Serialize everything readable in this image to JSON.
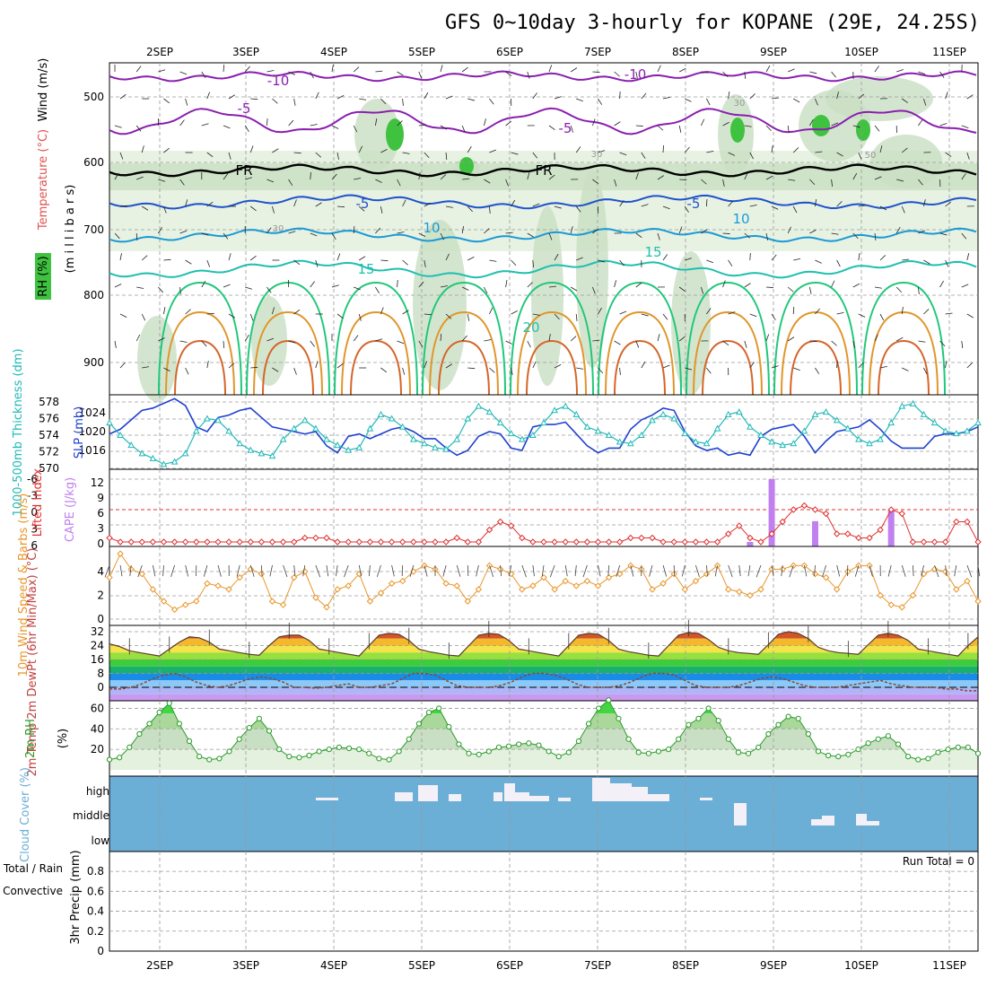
{
  "title": "GFS 0~10day 3-hourly for KOPANE (29E, 24.25S)",
  "colors": {
    "frame": "#000000",
    "grid": "#9a9a9a",
    "rh_shade": "#e4f1df",
    "rh_shade2": "#c9dfc3",
    "rh_dark": "#a9bfa4",
    "rh_green": "#3fc23f",
    "temp_purple": "#8a1fb0",
    "temp_blue": "#1f52cc",
    "temp_lightblue": "#1a9ad6",
    "temp_teal": "#1fbfb0",
    "temp_green": "#1fc77a",
    "temp_orange": "#e0962a",
    "temp_darkorange": "#d4662a",
    "slp_line": "#2040d0",
    "thick_line": "#20b8b8",
    "li_line": "#e03030",
    "cape_bar": "#c080f0",
    "wind_line": "#e8962a",
    "rh2m_line": "#2a9a2a",
    "cloud_bg": "#6baed6",
    "cloud_white": "#f4f0f8",
    "temp_fill_colors": [
      "#9b3c14",
      "#d2552a",
      "#f08a2a",
      "#f4b82a",
      "#f4e34a",
      "#9ae03c",
      "#3ccc3c",
      "#1ab06e",
      "#1a8ce8",
      "#2a64e8",
      "#8cc8f8",
      "#b0b4f8",
      "#c89af0"
    ],
    "dewpt_line": "#8a4a30"
  },
  "chart_data": [
    {
      "panel": "cross_section",
      "type": "contour",
      "y_labels": [
        "500",
        "600",
        "700",
        "800",
        "900"
      ],
      "y_axis_label_temp": "Temperature (°C)",
      "y_axis_label_wind": "Wind (m/s)",
      "y_axis_label_mb": "(m i l l i b a r s)",
      "rh_legend": "RH (%)",
      "contour_labels": [
        "-10",
        "-10",
        "-5",
        "-5",
        "FR",
        "FR",
        "-5",
        "-5",
        "10",
        "10",
        "15",
        "15",
        "20",
        "30",
        "30",
        "30",
        "50"
      ],
      "temperature_isotherms": [
        -10,
        -5,
        0,
        5,
        10,
        15,
        20,
        25,
        30
      ],
      "x_labels": [
        "2SEP",
        "3SEP",
        "4SEP",
        "5SEP",
        "6SEP",
        "7SEP",
        "8SEP",
        "9SEP",
        "10SEP",
        "11SEP"
      ]
    },
    {
      "panel": "slp_thickness",
      "type": "line",
      "y_labels_left": [
        "578",
        "576",
        "574",
        "572",
        "570"
      ],
      "y_labels_right": [
        "1024",
        "1020",
        "1016"
      ],
      "ylabel_thickness": "1000-500mb Thickness (dm)",
      "ylabel_slp": "SLP (mb)",
      "series": [
        {
          "name": "SLP",
          "unit": "mb",
          "values": [
            1019.5,
            1020.5,
            1022.5,
            1024.5,
            1025,
            1026,
            1027,
            1025.5,
            1021,
            1020,
            1023,
            1023.5,
            1024.5,
            1025,
            1023,
            1021,
            1020.5,
            1020,
            1019.5,
            1020,
            1017,
            1015.5,
            1019,
            1019.5,
            1018.5,
            1019.5,
            1020.5,
            1021,
            1020,
            1018.5,
            1018.5,
            1016.5,
            1015,
            1016,
            1019,
            1020,
            1019.5,
            1016.5,
            1016,
            1021,
            1021.5,
            1021.5,
            1022,
            1019.5,
            1017,
            1015.5,
            1016.5,
            1016.5,
            1020.5,
            1022.5,
            1023.5,
            1025,
            1024.5,
            1020,
            1017,
            1016,
            1016.5,
            1015,
            1015.5,
            1015,
            1019,
            1020.5,
            1021,
            1021.5,
            1019,
            1015.5,
            1018,
            1020,
            1020.5,
            1021,
            1022.5,
            1020.5,
            1018,
            1016.5,
            1016.5,
            1016.5,
            1019,
            1019.5,
            1019.5,
            1020,
            1021
          ]
        },
        {
          "name": "Thickness",
          "unit": "dm",
          "values": [
            575.5,
            574,
            572.8,
            571.8,
            571.2,
            570.5,
            570.8,
            571.8,
            574.5,
            576,
            575.8,
            574.5,
            573,
            572.2,
            571.8,
            571.5,
            573.5,
            574.8,
            575.8,
            574.8,
            573.5,
            572.8,
            572.2,
            572.5,
            574.8,
            576.5,
            576,
            575,
            573.5,
            573,
            572.5,
            572.3,
            573.5,
            576,
            577.5,
            576.8,
            575.5,
            574.2,
            573.5,
            574,
            575.5,
            577,
            577.5,
            576.5,
            575,
            574.5,
            574,
            573.2,
            573,
            574,
            575.8,
            576.5,
            576,
            574.2,
            573.2,
            573,
            574.8,
            576.5,
            576.8,
            575,
            574,
            573.2,
            572.8,
            573,
            574.5,
            576.5,
            576.8,
            575.8,
            574.8,
            573.5,
            573,
            573.5,
            575.5,
            577.5,
            577.8,
            576.5,
            575.5,
            574.5,
            574.2,
            574.5,
            575.5
          ]
        }
      ]
    },
    {
      "panel": "lifted_index_cape",
      "type": "bar",
      "y_labels_left": [
        "-6",
        "-3",
        "0",
        "3",
        "6"
      ],
      "y_labels_right": [
        "12",
        "9",
        "6",
        "3",
        "0"
      ],
      "ylabel_li": "Lifted Index",
      "ylabel_cape": "CAPE (J/kg)",
      "lifted_index": [
        5.5,
        6,
        6,
        6,
        6,
        6,
        6,
        6,
        6,
        6,
        6,
        6,
        6,
        6,
        6,
        6,
        6,
        6,
        5.5,
        5.5,
        5.5,
        6,
        6,
        6,
        6,
        6,
        6,
        6,
        6,
        6,
        6,
        6,
        5.5,
        6,
        6,
        4.5,
        3.5,
        4,
        5.5,
        6,
        6,
        6,
        6,
        6,
        6,
        6,
        6,
        6,
        5.5,
        5.5,
        5.5,
        6,
        6,
        6,
        6,
        6,
        6,
        5,
        4,
        5.5,
        6,
        5,
        3.5,
        2,
        1.5,
        2,
        2.5,
        5,
        5,
        5.5,
        5.5,
        4.5,
        2,
        2.5,
        6,
        6,
        6,
        6,
        3.5,
        3.5,
        6
      ],
      "cape": [
        0,
        0,
        0,
        0,
        0,
        0,
        0,
        0,
        0,
        0,
        0,
        0,
        0,
        0,
        0,
        0,
        0,
        0,
        0,
        0,
        0,
        0,
        0,
        0,
        0,
        0,
        0,
        0,
        0,
        0,
        0,
        0,
        0,
        0,
        0,
        0,
        0,
        0,
        0,
        0,
        0,
        0,
        0,
        0,
        0,
        0,
        0,
        0,
        0,
        0,
        0,
        0,
        0,
        0,
        0,
        0,
        0,
        0,
        0,
        0.8,
        0,
        12,
        0,
        0,
        0,
        4.5,
        0,
        0,
        0,
        0,
        0,
        0,
        6.5,
        0,
        0,
        0,
        0,
        0,
        0,
        0,
        0
      ]
    },
    {
      "panel": "wind_10m",
      "type": "line",
      "y_labels": [
        "4",
        "2",
        "0"
      ],
      "ylabel": "10m Wind Speed & Barbs (m/s)",
      "values": [
        3.5,
        5.5,
        4.2,
        3.8,
        2.5,
        1.5,
        0.8,
        1.2,
        1.5,
        3,
        2.8,
        2.5,
        3.5,
        4.2,
        3.8,
        1.5,
        1.2,
        3.5,
        4,
        1.8,
        1,
        2.5,
        2.8,
        3.8,
        1.5,
        2.2,
        3,
        3.2,
        4,
        4.5,
        4.2,
        3,
        2.8,
        1.5,
        2.5,
        4.5,
        4.2,
        3.8,
        2.5,
        2.8,
        3.5,
        2.5,
        3.2,
        2.8,
        3.2,
        2.8,
        3.5,
        3.8,
        4.5,
        4.2,
        2.5,
        3,
        3.8,
        2.5,
        3.2,
        3.8,
        4.5,
        2.5,
        2.3,
        2,
        2.5,
        4.2,
        4.2,
        4.5,
        4.5,
        3.8,
        3.5,
        2.5,
        4,
        4.5,
        4.5,
        2,
        1.2,
        1,
        2,
        3.8,
        4.2,
        4,
        2.5,
        3.2,
        1.5
      ]
    },
    {
      "panel": "temp_2m",
      "type": "area",
      "y_labels": [
        "32",
        "24",
        "16",
        "8",
        "0"
      ],
      "ylabel": "2m Temp 2m DewPt (6hr Min/Max) (°C)",
      "temperature": [
        25,
        23.5,
        21,
        20,
        19,
        18,
        22,
        26,
        29,
        28.5,
        26,
        22,
        21,
        20,
        19,
        18.5,
        24,
        29,
        30,
        30,
        27,
        22,
        21,
        20,
        19,
        18,
        24,
        30,
        31,
        30.5,
        27,
        22,
        20.5,
        19.5,
        18.5,
        18,
        24,
        30,
        31,
        30.5,
        27,
        22,
        21,
        20,
        19,
        18,
        24,
        30,
        31,
        30.5,
        27,
        22,
        20.5,
        19.5,
        18.5,
        18,
        24,
        30,
        31.5,
        31,
        27.5,
        23,
        21,
        20,
        19.5,
        19,
        24.5,
        30.5,
        32,
        31,
        28,
        23,
        21,
        20,
        19.5,
        19,
        24.5,
        30,
        31,
        30,
        27,
        22,
        21,
        20,
        19,
        18,
        24,
        29
      ],
      "dewpoint": [
        -1,
        -1,
        0,
        2,
        5,
        7,
        8,
        6,
        3,
        1,
        0,
        1,
        3,
        5,
        6,
        5,
        3,
        0,
        0,
        -0.5,
        0,
        1,
        2,
        0,
        0,
        1,
        2,
        5,
        8,
        8,
        7,
        4,
        1,
        0,
        0,
        0,
        1,
        3,
        6,
        8,
        8,
        7,
        5,
        2,
        0,
        0,
        0,
        1,
        3,
        6,
        8,
        8,
        7,
        4,
        1,
        0,
        0,
        0,
        1,
        3,
        5,
        6,
        5,
        3,
        1,
        0,
        0,
        0,
        1,
        2,
        3,
        4,
        2,
        1,
        0,
        0,
        0,
        -1,
        -1,
        -2,
        -2
      ]
    },
    {
      "panel": "rh_2m",
      "type": "area",
      "y_labels": [
        "60",
        "40",
        "20"
      ],
      "ylabel": "2m RH",
      "unit": "(%)",
      "values": [
        10,
        12,
        22,
        35,
        45,
        56,
        65,
        45,
        28,
        13,
        10,
        11,
        18,
        30,
        41,
        50,
        38,
        20,
        13,
        12,
        14,
        18,
        20,
        22,
        21,
        20,
        16,
        11,
        10,
        18,
        30,
        45,
        56,
        60,
        42,
        25,
        16,
        15,
        18,
        22,
        23,
        25,
        26,
        24,
        18,
        13,
        17,
        28,
        45,
        60,
        68,
        50,
        30,
        17,
        16,
        18,
        20,
        30,
        44,
        50,
        60,
        48,
        30,
        17,
        16,
        22,
        35,
        44,
        52,
        50,
        35,
        18,
        14,
        13,
        15,
        20,
        26,
        30,
        33,
        25,
        13,
        10,
        11,
        17,
        20,
        22,
        22,
        16
      ]
    },
    {
      "panel": "cloud_cover",
      "type": "heatmap",
      "y_labels": [
        "high",
        "middle",
        "low"
      ],
      "ylabel": "Cloud Cover (%)"
    },
    {
      "panel": "precip_3hr",
      "type": "bar",
      "y_labels": [
        "0.8",
        "0.6",
        "0.4",
        "0.2",
        "0"
      ],
      "ylabel_total": "Total / Rain",
      "ylabel_conv": "Convective",
      "ylabel_precip": "3hr Precip (mm)",
      "run_total": "Run Total = 0",
      "x_labels": [
        "2SEP",
        "3SEP",
        "4SEP",
        "5SEP",
        "6SEP",
        "7SEP",
        "8SEP",
        "9SEP",
        "10SEP",
        "11SEP"
      ]
    }
  ]
}
